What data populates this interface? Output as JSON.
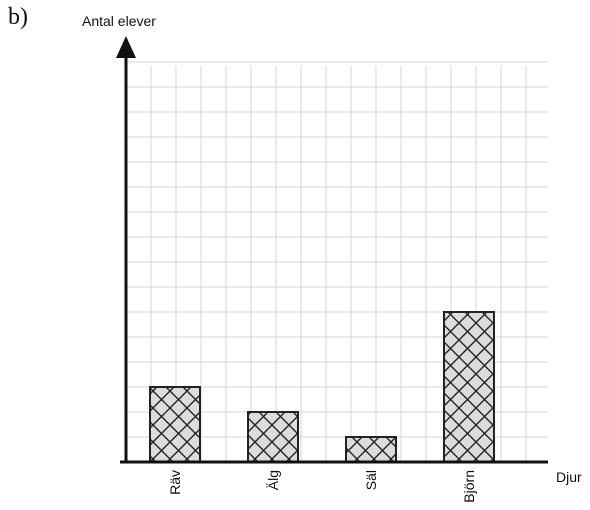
{
  "figure": {
    "label": "b)"
  },
  "chart_data": {
    "type": "bar",
    "title": "",
    "xlabel": "Djur",
    "ylabel": "Antal elever",
    "categories": [
      "Räv",
      "Älg",
      "Säl",
      "Björn"
    ],
    "values": [
      3,
      2,
      1,
      6
    ],
    "ylim": [
      0,
      16
    ],
    "grid": true,
    "colors": {
      "bar_fill": "#dcdcdc",
      "bar_stroke": "#222222",
      "grid": "#d6d6d6",
      "axis": "#111111"
    }
  }
}
